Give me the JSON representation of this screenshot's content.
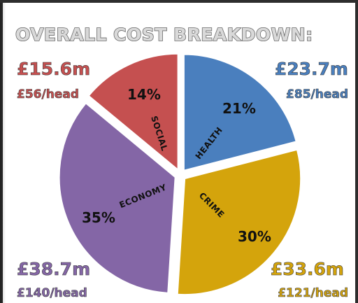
{
  "chart_data": {
    "type": "pie",
    "title": "OVERALL COST BREAKDOWN:",
    "slices": [
      {
        "category": "HEALTH",
        "percent_label": "21%",
        "value": 21,
        "amount": "£23.7m",
        "per_head": "£85/head",
        "color": "#4a7fbe"
      },
      {
        "category": "CRIME",
        "percent_label": "30%",
        "value": 30,
        "amount": "£33.6m",
        "per_head": "£121/head",
        "color": "#d4a40c"
      },
      {
        "category": "ECONOMY",
        "percent_label": "35%",
        "value": 35,
        "amount": "£38.7m",
        "per_head": "£140/head",
        "color": "#8466a6"
      },
      {
        "category": "SOCIAL",
        "percent_label": "14%",
        "value": 14,
        "amount": "£15.6m",
        "per_head": "£56/head",
        "color": "#c55050"
      }
    ]
  },
  "colors": {
    "health": "#4a7fbe",
    "crime": "#d4a40c",
    "economy": "#8466a6",
    "social": "#c55050",
    "title_fill": "#d9d9d9",
    "title_stroke": "#6a6a6a",
    "frame": "#2d2d2d"
  }
}
